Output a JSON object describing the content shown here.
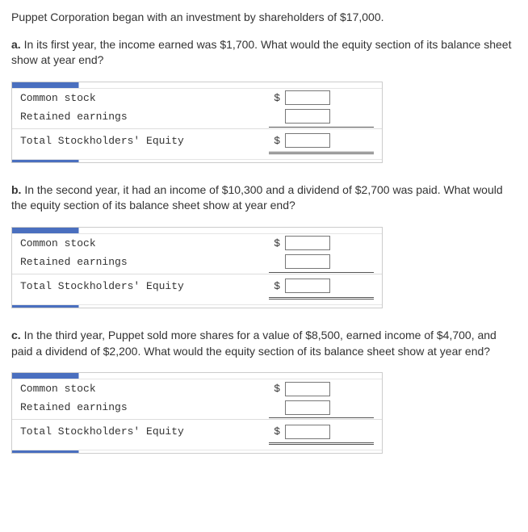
{
  "intro": "Puppet Corporation began with an investment by shareholders of $17,000.",
  "parts": [
    {
      "letter": "a.",
      "text": " In its first year, the income earned was $1,700. What would the equity section of its balance sheet show at year end?"
    },
    {
      "letter": "b.",
      "text": " In the second year, it had an income of $10,300 and a dividend of $2,700 was paid. What would the equity section of its balance sheet show at year end?"
    },
    {
      "letter": "c.",
      "text": " In the third year, Puppet sold more shares for a value of $8,500, earned income of $4,700, and paid a dividend of $2,200. What would the equity section of its balance sheet show at year end?"
    }
  ],
  "labels": {
    "common_stock": "Common stock",
    "retained_earnings": "Retained earnings",
    "total": "Total Stockholders' Equity",
    "dollar": "$"
  },
  "colors": {
    "accent": "#4a6fbf",
    "border": "#cccccc",
    "text": "#333333",
    "input_border": "#777777"
  }
}
